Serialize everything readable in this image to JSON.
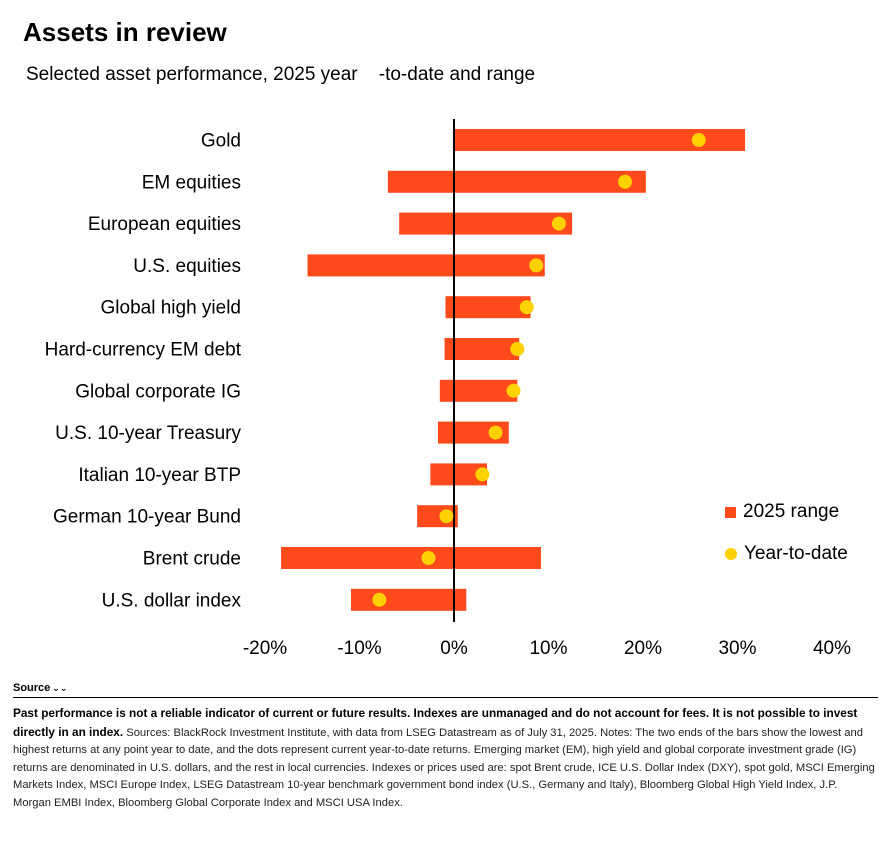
{
  "title": "Assets in review",
  "subtitle": "Selected asset performance, 2025 year    -to-date and range",
  "legend": {
    "range_label": "2025 range",
    "ytd_label": "Year-to-date"
  },
  "colors": {
    "range_bar": "#ff4a1c",
    "ytd_dot": "#ffd100",
    "zero_line": "#000000"
  },
  "chart_data": {
    "type": "bar",
    "orientation": "horizontal-floating-range-with-dots",
    "categories": [
      "Gold",
      "EM equities",
      "European equities",
      "U.S. equities",
      "Global high yield",
      "Hard-currency EM debt",
      "Global corporate IG",
      "U.S. 10-year Treasury",
      "Italian 10-year BTP",
      "German 10-year Bund",
      "Brent crude",
      "U.S. dollar index"
    ],
    "series": [
      {
        "name": "2025 range",
        "low": [
          0.0,
          -7.0,
          -5.8,
          -15.5,
          -0.9,
          -1.0,
          -1.5,
          -1.7,
          -2.5,
          -3.9,
          -18.3,
          -10.9
        ],
        "high": [
          30.8,
          20.3,
          12.5,
          9.6,
          8.1,
          6.9,
          6.7,
          5.8,
          3.5,
          0.4,
          9.2,
          1.3
        ]
      },
      {
        "name": "Year-to-date",
        "values": [
          25.9,
          18.1,
          11.1,
          8.7,
          7.7,
          6.7,
          6.3,
          4.4,
          3.0,
          -0.8,
          -2.7,
          -7.9
        ]
      }
    ],
    "x_ticks": [
      "-20%",
      "-10%",
      "0%",
      "10%",
      "20%",
      "30%",
      "40%"
    ],
    "xlim": [
      -20,
      40
    ],
    "xlabel": "",
    "ylabel": "",
    "grid": false,
    "legend_position": "right"
  },
  "footer": {
    "source_toggle": "Source",
    "disclaimer": "Past performance is not a reliable indicator of current or future results. Indexes are unmanaged and do not account for fees. It is not possible to invest directly in an index.",
    "notes": " Sources: BlackRock Investment Institute, with data from LSEG Datastream as of July 31, 2025. Notes: The two ends of the bars show the lowest and highest returns at any point year to date, and the dots represent current year-to-date returns. Emerging market (EM), high yield and global corporate investment grade (IG) returns are denominated in U.S. dollars, and the rest in local currencies. Indexes or prices used are: spot Brent crude, ICE U.S. Dollar Index (DXY), spot gold, MSCI Emerging Markets Index, MSCI Europe Index, LSEG Datastream 10-year benchmark government bond index (U.S., Germany and Italy), Bloomberg Global High Yield Index, J.P. Morgan EMBI Index, Bloomberg Global Corporate Index and MSCI USA Index."
  }
}
